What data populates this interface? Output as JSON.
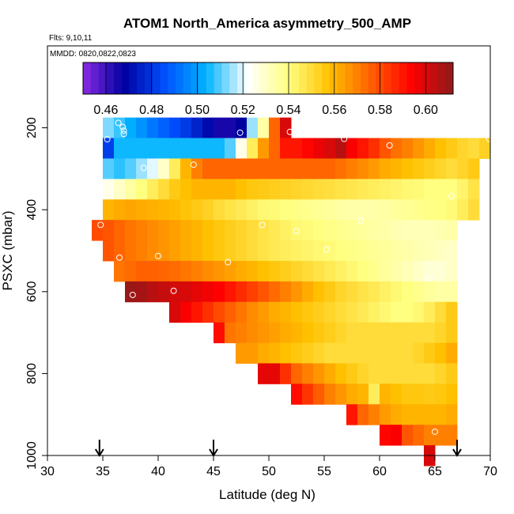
{
  "chart_data": {
    "type": "heatmap",
    "title": "ATOM1 North_America asymmetry_500_AMP",
    "annotations": [
      "Flts: 9,10,11",
      "MMDD: 0820,0822,0823"
    ],
    "xlabel": "Latitude (deg N)",
    "ylabel": "PSXC (mbar)",
    "xlim": [
      30,
      70
    ],
    "ylim": [
      1000,
      0
    ],
    "xticks": [
      30,
      35,
      40,
      45,
      50,
      55,
      60,
      65,
      70
    ],
    "yticks": [
      200,
      400,
      600,
      800,
      1000
    ],
    "colorbar": {
      "ticks": [
        0.46,
        0.48,
        0.5,
        0.52,
        0.54,
        0.56,
        0.58,
        0.6
      ],
      "range": [
        0.45,
        0.612
      ],
      "colors": [
        "#8a2be2",
        "#0000a0",
        "#0050ff",
        "#00b4ff",
        "#ffffff",
        "#ffff80",
        "#ffc000",
        "#ff6000",
        "#ff0000",
        "#8b1a1a"
      ]
    },
    "bin_width_deg": 1,
    "bin_height_mbar": 50,
    "profile_markers_lat": [
      34.7,
      45,
      67
    ],
    "rows": [
      {
        "p": 200,
        "lat0": 35,
        "values": [
          0.513,
          0.508,
          0.503,
          0.498,
          0.493,
          0.489,
          0.485,
          0.481,
          0.476,
          0.47,
          0.465,
          0.465,
          0.468,
          0.515,
          0.535,
          0.575,
          0.6
        ]
      },
      {
        "p": 250,
        "lat0": 35,
        "values": [
          0.482,
          0.505,
          0.505,
          0.505,
          0.505,
          0.505,
          0.505,
          0.505,
          0.505,
          0.505,
          0.505,
          0.51,
          0.525,
          0.545,
          0.565,
          0.575,
          0.59,
          0.59,
          0.593,
          0.597,
          0.6,
          0.605,
          0.595,
          0.59,
          0.585,
          0.578,
          0.573,
          0.57,
          0.566,
          0.562,
          0.558,
          0.555,
          0.552,
          0.55,
          0.553
        ]
      },
      {
        "p": 300,
        "lat0": 35,
        "values": [
          0.51,
          0.507,
          0.51,
          0.515,
          0.52,
          0.53,
          0.545,
          0.56,
          0.57,
          0.575,
          0.575,
          0.575,
          0.575,
          0.575,
          0.575,
          0.575,
          0.575,
          0.575,
          0.575,
          0.575,
          0.575,
          0.573,
          0.57,
          0.568,
          0.565,
          0.562,
          0.56,
          0.558,
          0.556,
          0.554,
          0.552,
          0.55,
          0.552,
          0.555
        ]
      },
      {
        "p": 350,
        "lat0": 35,
        "values": [
          0.525,
          0.53,
          0.535,
          0.54,
          0.545,
          0.55,
          0.555,
          0.558,
          0.56,
          0.56,
          0.56,
          0.56,
          0.558,
          0.556,
          0.555,
          0.554,
          0.553,
          0.552,
          0.551,
          0.55,
          0.549,
          0.548,
          0.547,
          0.546,
          0.545,
          0.544,
          0.543,
          0.542,
          0.541,
          0.54,
          0.54,
          0.54,
          0.543,
          0.548
        ]
      },
      {
        "p": 400,
        "lat0": 35,
        "values": [
          0.56,
          0.562,
          0.563,
          0.562,
          0.561,
          0.56,
          0.559,
          0.557,
          0.555,
          0.553,
          0.55,
          0.548,
          0.546,
          0.544,
          0.542,
          0.541,
          0.54,
          0.539,
          0.538,
          0.537,
          0.536,
          0.535,
          0.534,
          0.534,
          0.534,
          0.535,
          0.536,
          0.537,
          0.538,
          0.539,
          0.54,
          0.541,
          0.545,
          0.55
        ]
      },
      {
        "p": 450,
        "lat0": 34,
        "values": [
          0.58,
          0.578,
          0.575,
          0.572,
          0.57,
          0.568,
          0.566,
          0.564,
          0.562,
          0.56,
          0.558,
          0.556,
          0.554,
          0.552,
          0.55,
          0.548,
          0.546,
          0.544,
          0.542,
          0.541,
          0.54,
          0.539,
          0.538,
          0.537,
          0.536,
          0.535,
          0.534,
          0.533,
          0.532,
          0.532,
          0.532,
          0.533,
          0.534
        ]
      },
      {
        "p": 500,
        "lat0": 35,
        "values": [
          0.578,
          0.575,
          0.572,
          0.57,
          0.568,
          0.566,
          0.564,
          0.562,
          0.56,
          0.558,
          0.556,
          0.554,
          0.552,
          0.55,
          0.548,
          0.546,
          0.545,
          0.544,
          0.543,
          0.542,
          0.541,
          0.54,
          0.539,
          0.538,
          0.537,
          0.536,
          0.535,
          0.534,
          0.533,
          0.532,
          0.531,
          0.53
        ]
      },
      {
        "p": 550,
        "lat0": 36,
        "values": [
          0.572,
          0.574,
          0.576,
          0.576,
          0.575,
          0.574,
          0.572,
          0.57,
          0.568,
          0.566,
          0.564,
          0.562,
          0.56,
          0.558,
          0.556,
          0.554,
          0.552,
          0.55,
          0.548,
          0.546,
          0.544,
          0.542,
          0.54,
          0.538,
          0.536,
          0.534,
          0.532,
          0.53,
          0.528,
          0.528,
          0.53
        ]
      },
      {
        "p": 600,
        "lat0": 37,
        "values": [
          0.61,
          0.608,
          0.605,
          0.603,
          0.601,
          0.6,
          0.598,
          0.596,
          0.594,
          0.59,
          0.586,
          0.582,
          0.578,
          0.574,
          0.57,
          0.566,
          0.562,
          0.558,
          0.555,
          0.552,
          0.55,
          0.548,
          0.546,
          0.544,
          0.542,
          0.54,
          0.538,
          0.536,
          0.535,
          0.535
        ]
      },
      {
        "p": 650,
        "lat0": 41,
        "values": [
          0.6,
          0.595,
          0.59,
          0.585,
          0.58,
          0.576,
          0.572,
          0.568,
          0.565,
          0.562,
          0.56,
          0.558,
          0.556,
          0.554,
          0.552,
          0.55,
          0.548,
          0.546,
          0.544,
          0.542,
          0.54,
          0.54,
          0.542,
          0.545,
          0.55,
          0.555
        ]
      },
      {
        "p": 700,
        "lat0": 45,
        "values": [
          0.592,
          0.572,
          0.57,
          0.568,
          0.566,
          0.564,
          0.562,
          0.56,
          0.558,
          0.556,
          0.554,
          0.552,
          0.55,
          0.55,
          0.55,
          0.55,
          0.55,
          0.55,
          0.55,
          0.55,
          0.552,
          0.555
        ]
      },
      {
        "p": 750,
        "lat0": 47,
        "values": [
          0.565,
          0.565,
          0.562,
          0.56,
          0.558,
          0.556,
          0.554,
          0.552,
          0.55,
          0.55,
          0.55,
          0.55,
          0.55,
          0.55,
          0.55,
          0.55,
          0.552,
          0.555,
          0.558,
          0.562
        ]
      },
      {
        "p": 800,
        "lat0": 49,
        "values": [
          0.598,
          0.598,
          0.585,
          0.575,
          0.57,
          0.566,
          0.562,
          0.558,
          0.555,
          0.552,
          0.55,
          0.55,
          0.55,
          0.55,
          0.55,
          0.55,
          0.552,
          0.555
        ]
      },
      {
        "p": 850,
        "lat0": 52,
        "values": [
          0.592,
          0.584,
          0.577,
          0.57,
          0.566,
          0.562,
          0.56,
          0.545,
          0.56,
          0.558,
          0.556,
          0.556,
          0.555,
          0.556,
          0.558
        ]
      },
      {
        "p": 900,
        "lat0": 57,
        "values": [
          0.59,
          0.575,
          0.57,
          0.565,
          0.562,
          0.56,
          0.56,
          0.56,
          0.56,
          0.562
        ]
      },
      {
        "p": 950,
        "lat0": 60,
        "values": [
          0.593,
          0.595,
          0.578,
          0.574,
          0.57,
          0.57,
          0.57
        ]
      },
      {
        "p": 1000,
        "lat0": 64,
        "values": [
          0.6
        ]
      }
    ],
    "circles": [
      {
        "lat": 35.4,
        "p": 228
      },
      {
        "lat": 36.4,
        "p": 188
      },
      {
        "lat": 36.8,
        "p": 198
      },
      {
        "lat": 36.9,
        "p": 207
      },
      {
        "lat": 36.9,
        "p": 215
      },
      {
        "lat": 38.7,
        "p": 298
      },
      {
        "lat": 43.2,
        "p": 290
      },
      {
        "lat": 47.4,
        "p": 212
      },
      {
        "lat": 51.9,
        "p": 210
      },
      {
        "lat": 56.8,
        "p": 227
      },
      {
        "lat": 60.9,
        "p": 243
      },
      {
        "lat": 69.9,
        "p": 227
      },
      {
        "lat": 66.5,
        "p": 367
      },
      {
        "lat": 58.3,
        "p": 427
      },
      {
        "lat": 52.5,
        "p": 452
      },
      {
        "lat": 49.4,
        "p": 437
      },
      {
        "lat": 55.2,
        "p": 497
      },
      {
        "lat": 34.8,
        "p": 437
      },
      {
        "lat": 36.5,
        "p": 517
      },
      {
        "lat": 40.0,
        "p": 513
      },
      {
        "lat": 46.3,
        "p": 528
      },
      {
        "lat": 64.5,
        "p": 567
      },
      {
        "lat": 37.7,
        "p": 608
      },
      {
        "lat": 41.4,
        "p": 598
      },
      {
        "lat": 65.0,
        "p": 942
      }
    ]
  }
}
